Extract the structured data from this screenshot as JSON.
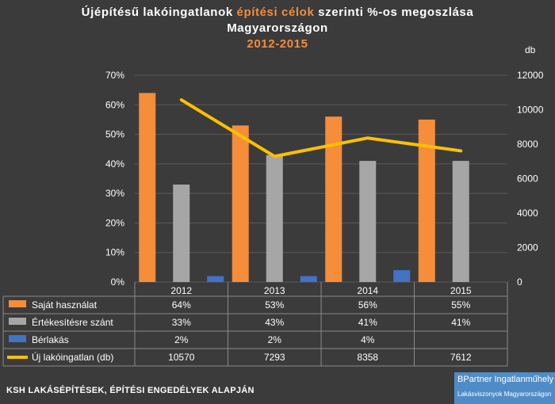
{
  "title": {
    "prefix": "Újépítésű lakóingatlanok ",
    "highlight": "építési célok",
    "suffix": " szerinti %-os megoszlása",
    "line2": "Magyarországon",
    "line3": "2012-2015"
  },
  "right_axis_unit": "db",
  "footer": "KSH LAKÁSÉPÍTÉSEK, ÉPÍTÉSI ENGEDÉLYEK ALAPJÁN",
  "logo": {
    "brand": "BPartner Ingatlanműhely",
    "tagline": "Lakásviszonyok Magyarországon"
  },
  "colors": {
    "background": "#3b3b3b",
    "accent": "#f58d3b",
    "sajat": "#f58d3b",
    "ertekesites": "#a6a6a6",
    "berlakas": "#4472c4",
    "line": "#ffc000",
    "grid": "#5a5a5a"
  },
  "chart_data": {
    "type": "bar",
    "categories": [
      "2012",
      "2013",
      "2014",
      "2015"
    ],
    "series": [
      {
        "name": "Saját használat",
        "type": "bar",
        "axis": "left",
        "color": "#f58d3b",
        "values": [
          64,
          53,
          56,
          55
        ],
        "labels": [
          "64%",
          "53%",
          "56%",
          "55%"
        ]
      },
      {
        "name": "Értékesítésre szánt",
        "type": "bar",
        "axis": "left",
        "color": "#a6a6a6",
        "values": [
          33,
          43,
          41,
          41
        ],
        "labels": [
          "33%",
          "43%",
          "41%",
          "41%"
        ]
      },
      {
        "name": "Bérlakás",
        "type": "bar",
        "axis": "left",
        "color": "#4472c4",
        "values": [
          2,
          2,
          4,
          null
        ],
        "labels": [
          "2%",
          "2%",
          "4%",
          ""
        ]
      },
      {
        "name": "Új lakóingatlan (db)",
        "type": "line",
        "axis": "right",
        "color": "#ffc000",
        "values": [
          10570,
          7293,
          8358,
          7612
        ],
        "labels": [
          "10570",
          "7293",
          "8358",
          "7612"
        ]
      }
    ],
    "y_left": {
      "min": 0,
      "max": 70,
      "ticks": [
        "0%",
        "10%",
        "20%",
        "30%",
        "40%",
        "50%",
        "60%",
        "70%"
      ]
    },
    "y_right": {
      "min": 0,
      "max": 12000,
      "unit": "db",
      "ticks": [
        "0",
        "2000",
        "4000",
        "6000",
        "8000",
        "10000",
        "12000"
      ]
    },
    "grid": true,
    "legend": "data table below chart"
  }
}
